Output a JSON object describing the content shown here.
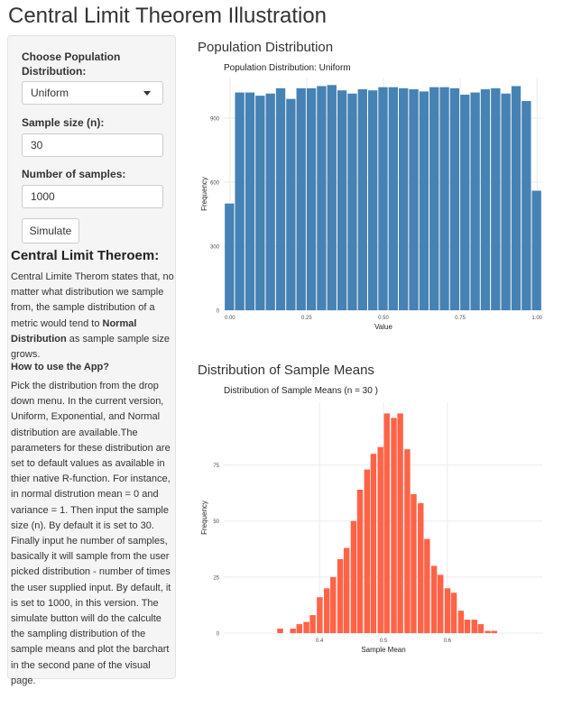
{
  "app": {
    "title": "Central Limit Theorem Illustration"
  },
  "sidebar": {
    "distribution": {
      "label": "Choose Population Distribution:",
      "value": "Uniform"
    },
    "sample_size": {
      "label": "Sample size (n):",
      "value": "30"
    },
    "num_samples": {
      "label": "Number of samples:",
      "value": "1000"
    },
    "simulate_label": "Simulate",
    "info": {
      "heading": "Central Limit Theroem:",
      "intro_text": "Central Limite Therom states that, no matter what distribution we sample from, the sample distribution of a metric would tend to ",
      "intro_bold": "Normal Distribution",
      "intro_tail": " as sample sample size grows.",
      "howto_heading": "How to use the App?",
      "howto_text": "Pick the distribution from the drop down menu. In the current version, Uniform, Exponential, and Normal distribution are available.The parameters for these distribution are set to default values as available in thier native R-function. For instance, in normal distrution mean = 0 and variance = 1. Then input the sample size (n). By default it is set to 30. Finally input he number of samples, basically it will sample from the user picked distribution - number of times the user supplied input. By default, it is set to 1000, in this version. The simulate button will do the calculte the sampling distribution of the sample means and plot the barchart in the second pane of the visual page."
    }
  },
  "main": {
    "population_panel_title": "Population Distribution",
    "means_panel_title": "Distribution of Sample Means"
  },
  "chart_data": [
    {
      "type": "bar",
      "title": "Population Distribution: Uniform",
      "xlabel": "Value",
      "ylabel": "Frequency",
      "color": "#4682B4",
      "xlim": [
        -0.02,
        1.02
      ],
      "ylim": [
        0,
        1090
      ],
      "x_ticks": [
        0.0,
        0.25,
        0.5,
        0.75,
        1.0
      ],
      "x_tick_labels": [
        "0.00",
        "0.25",
        "0.50",
        "0.75",
        "1.00"
      ],
      "y_ticks": [
        0,
        300,
        600,
        900
      ],
      "y_tick_labels": [
        "0",
        "300",
        "600",
        "900"
      ],
      "bin_width": 0.03333,
      "x": [
        0.0,
        0.0333,
        0.0667,
        0.1,
        0.1333,
        0.1667,
        0.2,
        0.2333,
        0.2667,
        0.3,
        0.3333,
        0.3667,
        0.4,
        0.4333,
        0.4667,
        0.5,
        0.5333,
        0.5667,
        0.6,
        0.6333,
        0.6667,
        0.7,
        0.7333,
        0.7667,
        0.8,
        0.8333,
        0.8667,
        0.9,
        0.9333,
        0.9667,
        1.0
      ],
      "values": [
        500,
        1020,
        1020,
        1005,
        1015,
        1040,
        990,
        1040,
        1040,
        1050,
        1055,
        1030,
        1015,
        1035,
        1030,
        1045,
        1045,
        1040,
        1035,
        1025,
        1045,
        1045,
        1040,
        1010,
        1020,
        1035,
        1040,
        1015,
        1050,
        980,
        560
      ]
    },
    {
      "type": "bar",
      "title": "Distribution of Sample Means (n = 30 )",
      "xlabel": "Sample Mean",
      "ylabel": "Frequency",
      "color": "#FF6347",
      "xlim": [
        0.25,
        0.75
      ],
      "ylim": [
        0,
        103
      ],
      "x_ticks": [
        0.4,
        0.5,
        0.6
      ],
      "x_tick_labels": [
        "0.4",
        "0.5",
        "0.6"
      ],
      "y_ticks": [
        0,
        25,
        50,
        75
      ],
      "y_tick_labels": [
        "0",
        "25",
        "50",
        "75"
      ],
      "bin_width": 0.0105,
      "x": [
        0.339,
        0.359,
        0.369,
        0.38,
        0.39,
        0.401,
        0.412,
        0.422,
        0.433,
        0.443,
        0.454,
        0.464,
        0.475,
        0.485,
        0.496,
        0.506,
        0.517,
        0.527,
        0.538,
        0.548,
        0.559,
        0.569,
        0.58,
        0.59,
        0.601,
        0.611,
        0.622,
        0.632,
        0.643,
        0.653,
        0.664,
        0.674
      ],
      "values": [
        2,
        2,
        4,
        5,
        8,
        16,
        20,
        25,
        33,
        38,
        50,
        64,
        73,
        80,
        83,
        98,
        96,
        98,
        82,
        62,
        58,
        42,
        30,
        26,
        20,
        18,
        10,
        6,
        6,
        4,
        1,
        1
      ]
    }
  ]
}
